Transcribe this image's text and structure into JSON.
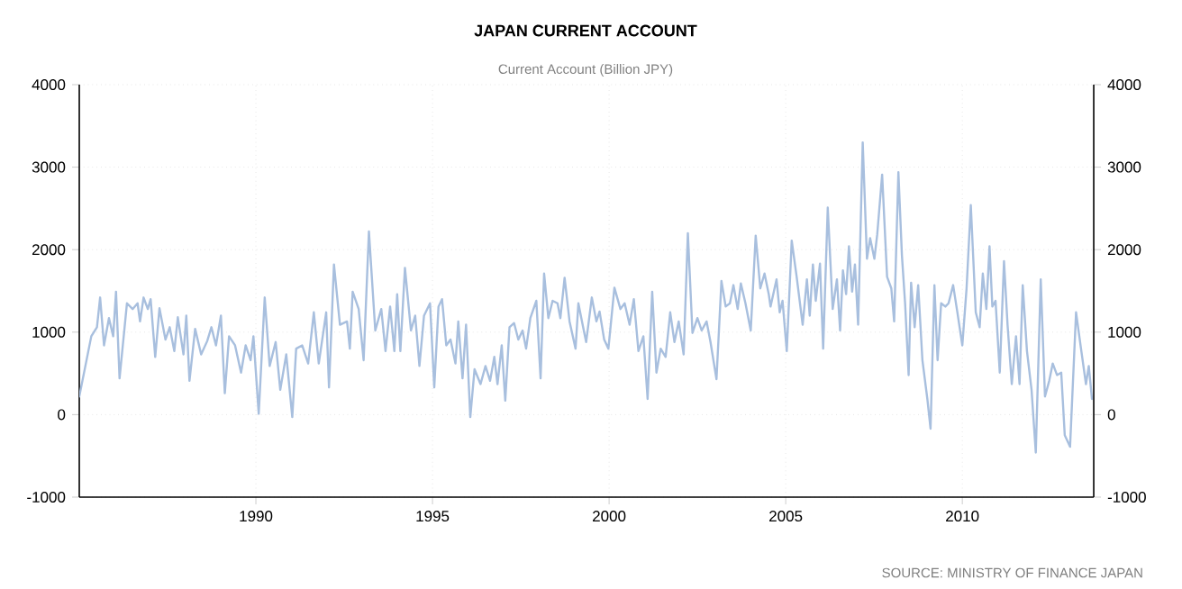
{
  "chart_data": {
    "type": "line",
    "title": "JAPAN CURRENT ACCOUNT",
    "subtitle": "Current Account (Billion JPY)",
    "annotations": [
      "SOURCE: MINISTRY OF FINANCE JAPAN"
    ],
    "x": [
      1985.0,
      1985.34,
      1985.5,
      1985.59,
      1985.7,
      1985.84,
      1985.96,
      1986.04,
      1986.14,
      1986.35,
      1986.51,
      1986.65,
      1986.72,
      1986.82,
      1986.94,
      1987.02,
      1987.15,
      1987.27,
      1987.44,
      1987.56,
      1987.69,
      1987.79,
      1987.95,
      1988.03,
      1988.12,
      1988.28,
      1988.45,
      1988.62,
      1988.74,
      1988.87,
      1989.01,
      1989.12,
      1989.24,
      1989.41,
      1989.58,
      1989.71,
      1989.85,
      1989.93,
      1990.08,
      1990.25,
      1990.39,
      1990.56,
      1990.69,
      1990.86,
      1991.03,
      1991.14,
      1991.31,
      1991.48,
      1991.64,
      1991.78,
      1991.99,
      1992.07,
      1992.21,
      1992.38,
      1992.58,
      1992.66,
      1992.74,
      1992.91,
      1993.05,
      1993.2,
      1993.38,
      1993.55,
      1993.67,
      1993.8,
      1993.92,
      1994.0,
      1994.09,
      1994.22,
      1994.39,
      1994.51,
      1994.63,
      1994.76,
      1994.93,
      1995.05,
      1995.17,
      1995.27,
      1995.39,
      1995.51,
      1995.65,
      1995.73,
      1995.85,
      1995.95,
      1996.07,
      1996.19,
      1996.36,
      1996.5,
      1996.63,
      1996.75,
      1996.84,
      1996.96,
      1997.06,
      1997.18,
      1997.31,
      1997.43,
      1997.55,
      1997.65,
      1997.77,
      1997.94,
      1998.06,
      1998.16,
      1998.28,
      1998.4,
      1998.54,
      1998.62,
      1998.74,
      1998.88,
      1999.05,
      1999.13,
      1999.25,
      1999.35,
      1999.51,
      1999.64,
      1999.73,
      1999.86,
      1999.98,
      2000.15,
      2000.32,
      2000.44,
      2000.58,
      2000.7,
      2000.83,
      2000.97,
      2001.09,
      2001.22,
      2001.34,
      2001.46,
      2001.6,
      2001.73,
      2001.85,
      2001.97,
      2002.11,
      2002.23,
      2002.36,
      2002.5,
      2002.62,
      2002.76,
      2002.87,
      2003.04,
      2003.18,
      2003.3,
      2003.42,
      2003.52,
      2003.64,
      2003.73,
      2003.86,
      2004.01,
      2004.15,
      2004.28,
      2004.4,
      2004.52,
      2004.57,
      2004.74,
      2004.83,
      2004.91,
      2005.03,
      2005.17,
      2005.31,
      2005.48,
      2005.6,
      2005.68,
      2005.77,
      2005.85,
      2005.97,
      2006.06,
      2006.19,
      2006.33,
      2006.45,
      2006.54,
      2006.62,
      2006.71,
      2006.79,
      2006.88,
      2006.96,
      2007.05,
      2007.18,
      2007.3,
      2007.39,
      2007.51,
      2007.59,
      2007.73,
      2007.87,
      2007.99,
      2008.07,
      2008.19,
      2008.29,
      2008.38,
      2008.48,
      2008.55,
      2008.65,
      2008.75,
      2008.87,
      2009.01,
      2009.1,
      2009.21,
      2009.3,
      2009.4,
      2009.52,
      2009.61,
      2009.74,
      2009.86,
      2010.0,
      2010.12,
      2010.24,
      2010.38,
      2010.49,
      2010.58,
      2010.68,
      2010.77,
      2010.85,
      2010.94,
      2011.06,
      2011.18,
      2011.28,
      2011.4,
      2011.52,
      2011.62,
      2011.71,
      2011.83,
      2011.96,
      2012.08,
      2012.22,
      2012.34,
      2012.46,
      2012.56,
      2012.68,
      2012.8,
      2012.9,
      2013.05,
      2013.22,
      2013.36,
      2013.5,
      2013.58,
      2013.67
    ],
    "series": [
      {
        "color": "#a8bfde",
        "values": [
          220,
          950,
          1060,
          1420,
          840,
          1170,
          950,
          1490,
          440,
          1350,
          1280,
          1350,
          1130,
          1420,
          1280,
          1400,
          700,
          1290,
          910,
          1060,
          770,
          1180,
          730,
          1200,
          410,
          1040,
          730,
          890,
          1060,
          840,
          1200,
          260,
          950,
          840,
          510,
          840,
          660,
          950,
          10,
          1420,
          590,
          880,
          300,
          730,
          -30,
          800,
          840,
          620,
          1240,
          620,
          1240,
          330,
          1820,
          1090,
          1130,
          800,
          1490,
          1280,
          660,
          2220,
          1020,
          1280,
          770,
          1310,
          770,
          1460,
          770,
          1780,
          1020,
          1200,
          590,
          1200,
          1350,
          330,
          1310,
          1400,
          840,
          910,
          620,
          1130,
          440,
          1090,
          -30,
          550,
          370,
          590,
          410,
          700,
          370,
          840,
          170,
          1060,
          1110,
          910,
          1020,
          800,
          1170,
          1380,
          440,
          1710,
          1170,
          1380,
          1350,
          1170,
          1660,
          1130,
          800,
          1350,
          1090,
          880,
          1420,
          1130,
          1250,
          910,
          800,
          1540,
          1280,
          1350,
          1090,
          1400,
          770,
          950,
          190,
          1490,
          510,
          800,
          700,
          1240,
          880,
          1130,
          730,
          2200,
          990,
          1170,
          1020,
          1130,
          880,
          430,
          1620,
          1310,
          1350,
          1570,
          1280,
          1590,
          1350,
          1020,
          2170,
          1530,
          1710,
          1460,
          1310,
          1640,
          1240,
          1380,
          770,
          2110,
          1670,
          1090,
          1640,
          1200,
          1820,
          1380,
          1830,
          800,
          2510,
          1280,
          1640,
          1020,
          1750,
          1460,
          2040,
          1490,
          1820,
          1090,
          3300,
          1890,
          2140,
          1890,
          2180,
          2910,
          1670,
          1530,
          1130,
          2940,
          1930,
          1350,
          480,
          1600,
          1060,
          1570,
          660,
          190,
          -170,
          1570,
          660,
          1350,
          1310,
          1350,
          1570,
          1240,
          840,
          1530,
          2540,
          1240,
          1060,
          1710,
          1280,
          2040,
          1310,
          1380,
          510,
          1860,
          1090,
          370,
          950,
          370,
          1570,
          770,
          300,
          -460,
          1640,
          220,
          410,
          620,
          480,
          510,
          -250,
          -390,
          1240,
          800,
          370,
          590,
          190
        ]
      }
    ],
    "xlim": [
      1985,
      2013.72
    ],
    "xticks": [
      1990,
      1995,
      2000,
      2005,
      2010
    ],
    "ylim": [
      -1000,
      4000
    ],
    "yticks": [
      -1000,
      0,
      1000,
      2000,
      3000,
      4000
    ],
    "y2lim": [
      -1000,
      4000
    ],
    "y2ticks": [
      -1000,
      0,
      1000,
      2000,
      3000,
      4000
    ],
    "grid": true,
    "line_style": "solid"
  }
}
